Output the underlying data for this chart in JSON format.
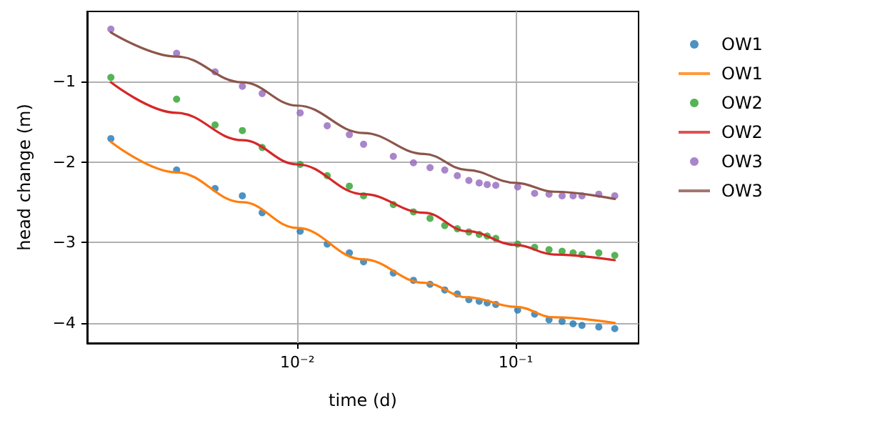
{
  "chart_data": {
    "type": "scatter",
    "xlabel": "time (d)",
    "ylabel": "head change (m)",
    "log": "x",
    "grid": true,
    "legend": "right",
    "marker": "circle",
    "x": [
      0.0014,
      0.0028,
      0.0042,
      0.0056,
      0.0069,
      0.0103,
      0.0137,
      0.0173,
      0.0201,
      0.0275,
      0.034,
      0.0405,
      0.0473,
      0.054,
      0.061,
      0.068,
      0.074,
      0.081,
      0.102,
      0.122,
      0.142,
      0.163,
      0.183,
      0.201,
      0.24,
      0.284
    ],
    "xlim": [
      0.00109,
      0.365
    ],
    "xticks": [
      {
        "value": 0.01,
        "label": "10⁻²"
      },
      {
        "value": 0.1,
        "label": "10⁻¹"
      }
    ],
    "ylim": [
      -4.25,
      -0.13
    ],
    "yticks": [
      {
        "value": -4,
        "label": "−4"
      },
      {
        "value": -3,
        "label": "−3"
      },
      {
        "value": -2,
        "label": "−2"
      },
      {
        "value": -1,
        "label": "−1"
      }
    ],
    "series": [
      {
        "name": "OW1",
        "color": "#1f77b4",
        "values": [
          -1.71,
          -2.1,
          -2.33,
          -2.42,
          -2.63,
          -2.86,
          -3.02,
          -3.13,
          -3.24,
          -3.38,
          -3.47,
          -3.52,
          -3.59,
          -3.64,
          -3.71,
          -3.73,
          -3.75,
          -3.77,
          -3.84,
          -3.89,
          -3.96,
          -3.98,
          -4.01,
          -4.03,
          -4.05,
          -4.07
        ]
      },
      {
        "name": "OW1",
        "type": "line",
        "color": "#ff7f0e",
        "line_style": "solid",
        "marker": "none",
        "x": [
          0.0014,
          0.0028,
          0.0056,
          0.01,
          0.02,
          0.038,
          0.06,
          0.1,
          0.15,
          0.284
        ],
        "values": [
          -1.75,
          -2.13,
          -2.5,
          -2.82,
          -3.21,
          -3.5,
          -3.68,
          -3.8,
          -3.93,
          -4.0
        ]
      },
      {
        "name": "OW2",
        "color": "#2ca02c",
        "values": [
          -0.95,
          -1.22,
          -1.54,
          -1.61,
          -1.82,
          -2.03,
          -2.17,
          -2.3,
          -2.42,
          -2.53,
          -2.62,
          -2.7,
          -2.79,
          -2.83,
          -2.87,
          -2.9,
          -2.92,
          -2.95,
          -3.02,
          -3.06,
          -3.09,
          -3.11,
          -3.13,
          -3.15,
          -3.13,
          -3.16
        ]
      },
      {
        "name": "OW2",
        "type": "line",
        "color": "#d62728",
        "line_style": "solid",
        "marker": "none",
        "x": [
          0.0014,
          0.0028,
          0.0056,
          0.01,
          0.0201,
          0.038,
          0.06,
          0.1,
          0.15,
          0.284
        ],
        "values": [
          -1.01,
          -1.39,
          -1.73,
          -2.03,
          -2.4,
          -2.63,
          -2.86,
          -3.03,
          -3.15,
          -3.22
        ]
      },
      {
        "name": "OW3",
        "color": "#9467bd",
        "values": [
          -0.35,
          -0.65,
          -0.88,
          -1.06,
          -1.15,
          -1.39,
          -1.55,
          -1.66,
          -1.78,
          -1.93,
          -2.01,
          -2.07,
          -2.1,
          -2.17,
          -2.23,
          -2.26,
          -2.28,
          -2.29,
          -2.31,
          -2.39,
          -2.4,
          -2.42,
          -2.42,
          -2.42,
          -2.4,
          -2.42
        ]
      },
      {
        "name": "OW3",
        "type": "line",
        "color": "#8c564b",
        "line_style": "solid",
        "marker": "none",
        "x": [
          0.0014,
          0.0028,
          0.0056,
          0.01,
          0.0201,
          0.038,
          0.06,
          0.1,
          0.15,
          0.284
        ],
        "values": [
          -0.39,
          -0.69,
          -1.01,
          -1.3,
          -1.64,
          -1.9,
          -2.1,
          -2.26,
          -2.37,
          -2.46
        ]
      }
    ]
  }
}
